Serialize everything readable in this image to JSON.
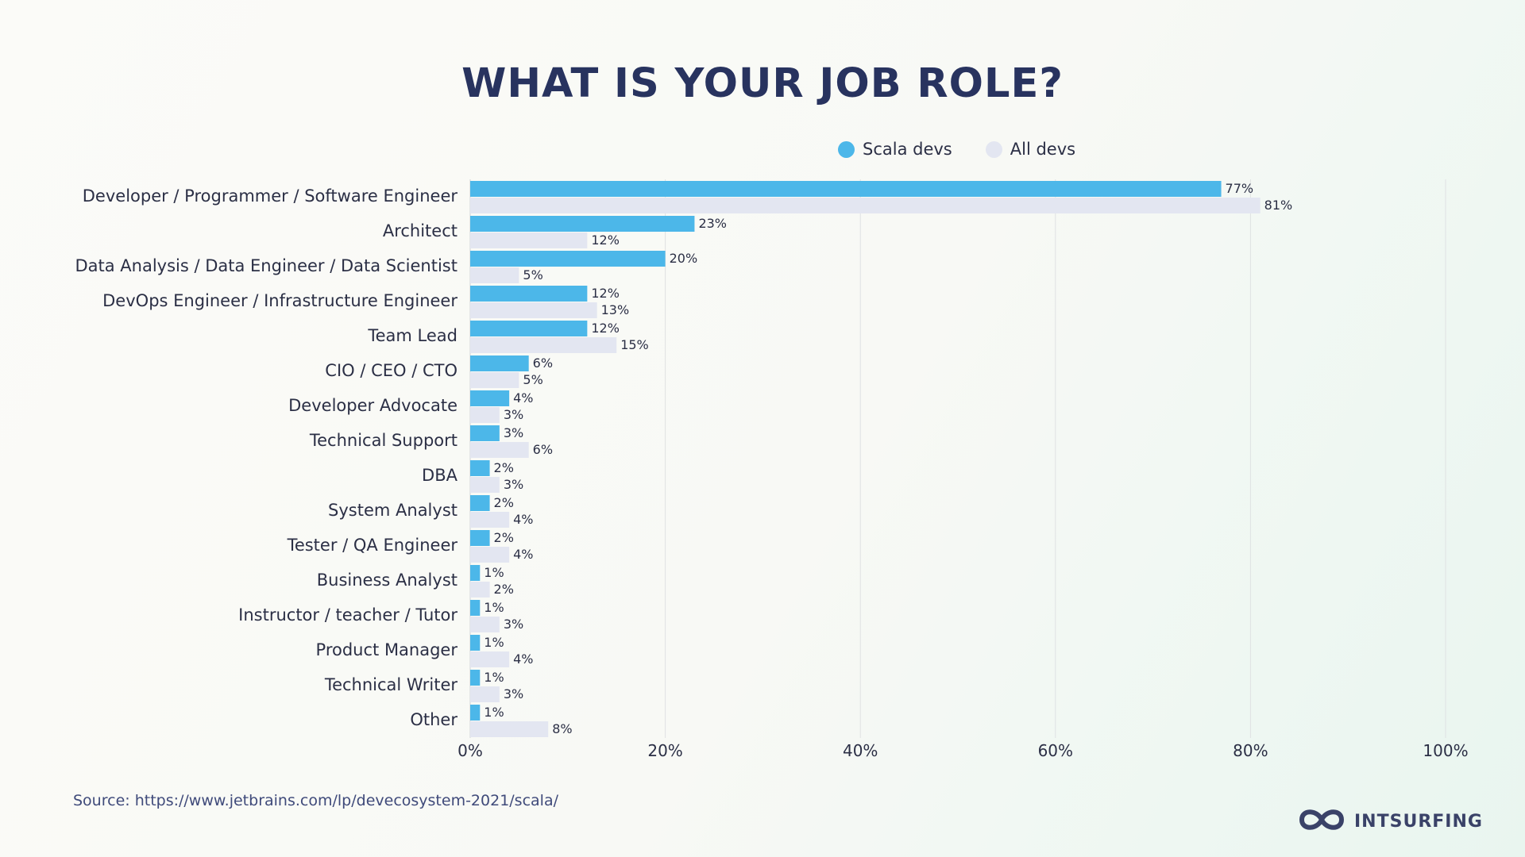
{
  "title": "WHAT IS YOUR JOB ROLE?",
  "source": "Source: https://www.jetbrains.com/lp/devecosystem-2021/scala/",
  "brand": {
    "name": "INTSURFING",
    "icon": "infinity-wave-logo-icon"
  },
  "colors": {
    "title": "#28335f",
    "scala": "#4cb7e9",
    "all": "#e3e6f1",
    "grid": "#dfe1e3",
    "label": "#2b2f45",
    "source": "#3f4a7a"
  },
  "chart_data": {
    "type": "bar",
    "orientation": "horizontal",
    "title": "WHAT IS YOUR JOB ROLE?",
    "xlabel": "",
    "ylabel": "",
    "xlim": [
      0,
      100
    ],
    "xticks": [
      "0%",
      "20%",
      "40%",
      "60%",
      "80%",
      "100%"
    ],
    "grid": true,
    "legend_position": "top-right",
    "categories": [
      "Developer / Programmer / Software Engineer",
      "Architect",
      "Data Analysis / Data Engineer / Data Scientist",
      "DevOps Engineer / Infrastructure Engineer",
      "Team Lead",
      "CIO / CEO / CTO",
      "Developer Advocate",
      "Technical Support",
      "DBA",
      "System Analyst",
      "Tester / QA Engineer",
      "Business Analyst",
      "Instructor / teacher / Tutor",
      "Product Manager",
      "Technical Writer",
      "Other"
    ],
    "series": [
      {
        "name": "Scala devs",
        "color": "#4cb7e9",
        "values": [
          77,
          23,
          20,
          12,
          12,
          6,
          4,
          3,
          2,
          2,
          2,
          1,
          1,
          1,
          1,
          1
        ]
      },
      {
        "name": "All devs",
        "color": "#e3e6f1",
        "values": [
          81,
          12,
          5,
          13,
          15,
          5,
          3,
          6,
          3,
          4,
          4,
          2,
          3,
          4,
          3,
          8
        ]
      }
    ]
  }
}
